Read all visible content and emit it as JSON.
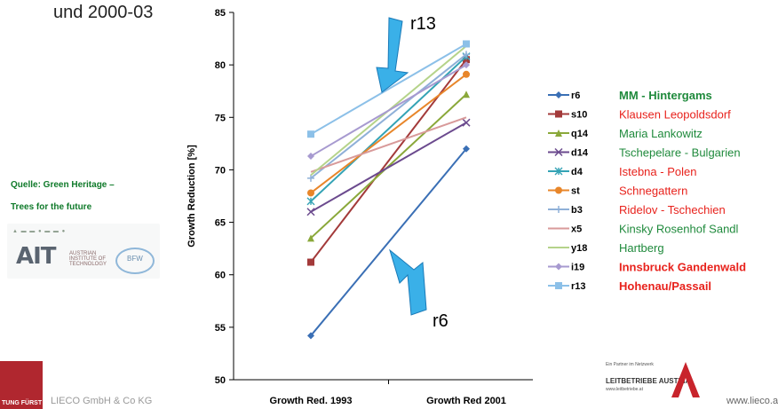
{
  "subtitle": "und 2000-03",
  "source_line1": "Quelle: Green Heritage –",
  "source_line2": "Trees for the future",
  "logo_text": "AIT",
  "logo_subtext": "AUSTRIAN INSTITUTE OF TECHNOLOGY",
  "logo_bfw": "BFW",
  "company_left": "LIECO GmbH & Co KG",
  "company_left_block": "TUNG FÜRST",
  "partner_caption": "Ein Partner im Netzwerk",
  "partner_name": "LEITBETRIEBE AUSTRIA",
  "partner_url": "www.leitbetriebe.at",
  "website": "www.lieco.a",
  "colors": {
    "axis": "#000000",
    "arrow_fill": "#3ab0e8",
    "arrow_stroke": "#1a7ab8"
  },
  "chart_data": {
    "type": "line",
    "categories": [
      "Growth Red. 1993",
      "Growth Red 2001"
    ],
    "ylabel": "Growth Reduction [%]",
    "ylim": [
      50,
      85
    ],
    "yticks": [
      50,
      55,
      60,
      65,
      70,
      75,
      80,
      85
    ],
    "grid": false,
    "legend_position": "right",
    "series": [
      {
        "name": "r6",
        "label": "MM - Hintergams",
        "values": [
          54.2,
          72.0
        ],
        "color": "#3a6fb5",
        "marker": "diamond",
        "label_color": "#1f8a3c",
        "label_bold": true
      },
      {
        "name": "s10",
        "label": "Klausen Leopoldsdorf",
        "values": [
          61.2,
          80.5
        ],
        "color": "#a33a3a",
        "marker": "square",
        "label_color": "#e8221c",
        "label_bold": false
      },
      {
        "name": "q14",
        "label": "Maria Lankowitz",
        "values": [
          63.5,
          77.2
        ],
        "color": "#8aa83a",
        "marker": "triangle",
        "label_color": "#1f8a3c",
        "label_bold": false
      },
      {
        "name": "d14",
        "label": "Tschepelare - Bulgarien",
        "values": [
          66.0,
          74.5
        ],
        "color": "#6b4a8e",
        "marker": "x",
        "label_color": "#1f8a3c",
        "label_bold": false
      },
      {
        "name": "d4",
        "label": "Istebna - Polen",
        "values": [
          67.0,
          80.8
        ],
        "color": "#34a3b5",
        "marker": "star",
        "label_color": "#e8221c",
        "label_bold": false
      },
      {
        "name": "st",
        "label": "Schnegattern",
        "values": [
          67.8,
          79.1
        ],
        "color": "#e8862a",
        "marker": "circle",
        "label_color": "#e8221c",
        "label_bold": false
      },
      {
        "name": "b3",
        "label": "Ridelov - Tschechien",
        "values": [
          69.2,
          81.0
        ],
        "color": "#8fb0d8",
        "marker": "plus",
        "label_color": "#e8221c",
        "label_bold": false
      },
      {
        "name": "x5",
        "label": "Kinsky Rosenhof Sandl",
        "values": [
          69.8,
          75.0
        ],
        "color": "#d89a9a",
        "marker": "none",
        "label_color": "#1f8a3c",
        "label_bold": false
      },
      {
        "name": "y18",
        "label": "Hartberg",
        "values": [
          69.5,
          81.8
        ],
        "color": "#b5d38a",
        "marker": "none",
        "label_color": "#1f8a3c",
        "label_bold": false
      },
      {
        "name": "i19",
        "label": "Innsbruck Gandenwald",
        "values": [
          71.3,
          80.0
        ],
        "color": "#a79ad0",
        "marker": "diamond",
        "label_color": "#e8221c",
        "label_bold": true
      },
      {
        "name": "r13",
        "label": "Hohenau/Passail",
        "values": [
          73.4,
          82.0
        ],
        "color": "#8cc0e8",
        "marker": "square",
        "label_color": "#e8221c",
        "label_bold": true
      }
    ],
    "annotations": [
      {
        "text": "r13",
        "points_to": [
          0.5,
          77.5
        ]
      },
      {
        "text": "r6",
        "points_to": [
          0.5,
          62.5
        ]
      }
    ]
  }
}
